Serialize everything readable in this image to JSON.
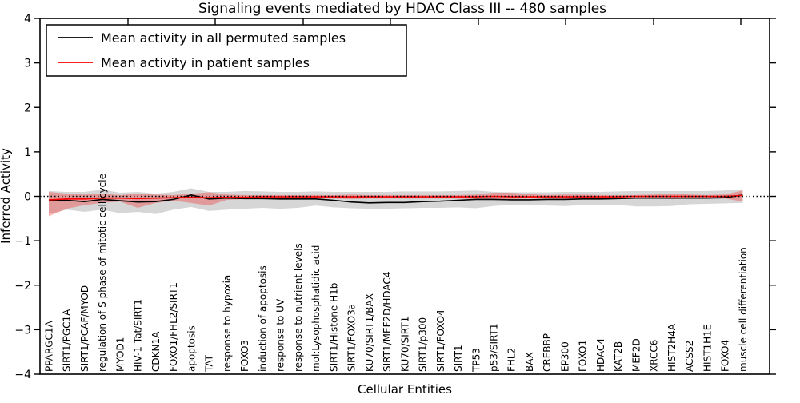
{
  "title": "Signaling events mediated by HDAC Class III -- 480 samples",
  "axes": {
    "ylabel": "Inferred Activity",
    "xlabel": "Cellular Entities",
    "yticks": [
      4,
      3,
      2,
      1,
      0,
      -1,
      -2,
      -3,
      -4
    ],
    "ylim": [
      -4,
      4
    ]
  },
  "colors": {
    "permuted_line": "#000000",
    "patient_line": "#ff0000",
    "permuted_band": "rgba(0,0,0,0.16)",
    "patient_band": "rgba(255,0,0,0.28)",
    "background": "#ffffff"
  },
  "chart_data": {
    "type": "line",
    "title": "Signaling events mediated by HDAC Class III -- 480 samples",
    "xlabel": "Cellular Entities",
    "ylabel": "Inferred Activity",
    "ylim": [
      -4,
      4
    ],
    "yticks": [
      4,
      3,
      2,
      1,
      0,
      -1,
      -2,
      -3,
      -4
    ],
    "grid": false,
    "legend_position": "upper left",
    "zero_line": {
      "y": 0,
      "style": "dotted",
      "color": "#000000"
    },
    "categories": [
      "PPARGC1A",
      "SIRT1/PGC1A",
      "SIRT1/PCAF/MYOD",
      "regulation of S phase of mitotic cell cycle",
      "MYOD1",
      "HIV-1 Tat/SIRT1",
      "CDKN1A",
      "FOXO1/FHL2/SIRT1",
      "apoptosis",
      "TAT",
      "response to hypoxia",
      "FOXO3",
      "induction of apoptosis",
      "response to UV",
      "response to nutrient levels",
      "mol:Lysophosphatidic acid",
      "SIRT1/Histone H1b",
      "SIRT1/FOXO3a",
      "KU70/SIRT1/BAX",
      "SIRT1/MEF2D/HDAC4",
      "KU70/SIRT1",
      "SIRT1/p300",
      "SIRT1/FOXO4",
      "SIRT1",
      "TP53",
      "p53/SIRT1",
      "FHL2",
      "BAX",
      "CREBBP",
      "EP300",
      "FOXO1",
      "HDAC4",
      "KAT2B",
      "MEF2D",
      "XRCC6",
      "HIST2H4A",
      "ACSS2",
      "HIST1H1E",
      "FOXO4",
      "muscle cell differentiation"
    ],
    "series": [
      {
        "name": "Mean activity in all permuted samples",
        "color": "#000000",
        "band_color": "rgba(0,0,0,0.16)",
        "values": [
          -0.1,
          -0.09,
          -0.12,
          -0.07,
          -0.1,
          -0.13,
          -0.12,
          -0.07,
          0.03,
          -0.06,
          -0.04,
          -0.05,
          -0.05,
          -0.06,
          -0.06,
          -0.06,
          -0.09,
          -0.13,
          -0.15,
          -0.14,
          -0.14,
          -0.12,
          -0.11,
          -0.09,
          -0.07,
          -0.07,
          -0.08,
          -0.08,
          -0.07,
          -0.07,
          -0.06,
          -0.06,
          -0.05,
          -0.04,
          -0.04,
          -0.04,
          -0.04,
          -0.04,
          -0.03,
          0.03
        ],
        "band_upper": [
          0.12,
          0.1,
          0.1,
          0.15,
          0.08,
          0.1,
          0.06,
          0.1,
          0.18,
          0.1,
          0.1,
          0.12,
          0.11,
          0.1,
          0.1,
          0.11,
          0.1,
          0.1,
          0.1,
          0.1,
          0.11,
          0.11,
          0.11,
          0.12,
          0.13,
          0.1,
          0.09,
          0.09,
          0.09,
          0.1,
          0.1,
          0.1,
          0.11,
          0.12,
          0.12,
          0.12,
          0.12,
          0.12,
          0.13,
          0.16
        ],
        "band_lower": [
          -0.4,
          -0.3,
          -0.35,
          -0.3,
          -0.38,
          -0.35,
          -0.4,
          -0.3,
          -0.24,
          -0.33,
          -0.3,
          -0.28,
          -0.26,
          -0.28,
          -0.26,
          -0.21,
          -0.25,
          -0.27,
          -0.28,
          -0.28,
          -0.27,
          -0.26,
          -0.26,
          -0.25,
          -0.27,
          -0.22,
          -0.19,
          -0.19,
          -0.21,
          -0.22,
          -0.2,
          -0.19,
          -0.19,
          -0.23,
          -0.23,
          -0.22,
          -0.18,
          -0.17,
          -0.16,
          -0.15
        ]
      },
      {
        "name": "Mean activity in patient samples",
        "color": "#ff0000",
        "band_color": "rgba(255,0,0,0.28)",
        "values": [
          -0.08,
          -0.06,
          -0.06,
          -0.04,
          -0.04,
          -0.05,
          -0.04,
          -0.03,
          -0.02,
          -0.03,
          -0.02,
          -0.02,
          -0.01,
          -0.01,
          -0.01,
          -0.01,
          -0.01,
          -0.01,
          -0.01,
          -0.01,
          -0.01,
          -0.01,
          -0.01,
          -0.01,
          -0.01,
          0.0,
          -0.01,
          -0.01,
          -0.01,
          -0.01,
          -0.01,
          -0.01,
          -0.01,
          0.0,
          0.0,
          0.0,
          0.0,
          0.0,
          0.0,
          0.02
        ],
        "band_upper": [
          0.1,
          0.06,
          0.04,
          0.06,
          0.03,
          0.06,
          0.04,
          0.03,
          0.06,
          0.09,
          0.04,
          0.03,
          0.03,
          0.03,
          0.03,
          0.03,
          0.03,
          0.04,
          0.03,
          0.03,
          0.03,
          0.03,
          0.03,
          0.03,
          0.04,
          0.08,
          0.08,
          0.05,
          0.03,
          0.04,
          0.04,
          0.03,
          0.03,
          0.03,
          0.04,
          0.06,
          0.04,
          0.03,
          0.04,
          0.13
        ],
        "band_lower": [
          -0.45,
          -0.28,
          -0.2,
          -0.15,
          -0.12,
          -0.26,
          -0.15,
          -0.1,
          -0.15,
          -0.21,
          -0.08,
          -0.06,
          -0.06,
          -0.06,
          -0.06,
          -0.05,
          -0.05,
          -0.06,
          -0.05,
          -0.05,
          -0.05,
          -0.05,
          -0.05,
          -0.05,
          -0.06,
          -0.07,
          -0.06,
          -0.05,
          -0.05,
          -0.06,
          -0.06,
          -0.05,
          -0.05,
          -0.05,
          -0.05,
          -0.06,
          -0.05,
          -0.04,
          -0.05,
          -0.12
        ]
      }
    ]
  },
  "legend": {
    "permuted_label": "Mean activity in all permuted samples",
    "patient_label": "Mean activity in patient samples"
  }
}
